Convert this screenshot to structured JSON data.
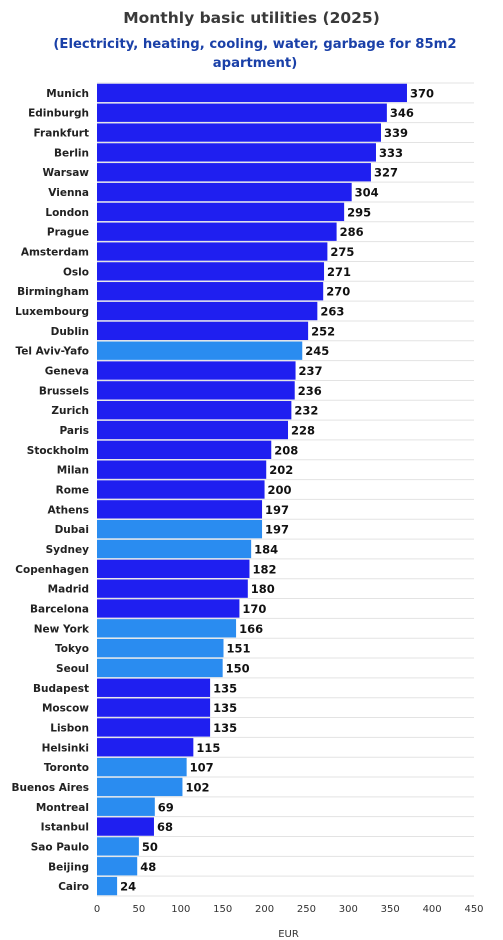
{
  "chart_data": {
    "type": "bar",
    "orientation": "horizontal",
    "title": "Monthly basic utilities (2025)",
    "subtitle": "(Electricity, heating, cooling, water, garbage for 85m2 apartment)",
    "xlabel": "EUR",
    "ylabel": "",
    "xlim": [
      0,
      450
    ],
    "xticks": [
      0,
      50,
      100,
      150,
      200,
      250,
      300,
      350,
      400,
      450
    ],
    "grid": true,
    "colors": {
      "europe": "#1f1ff0",
      "other": "#2a8cf0"
    },
    "categories": [
      "Munich",
      "Edinburgh",
      "Frankfurt",
      "Berlin",
      "Warsaw",
      "Vienna",
      "London",
      "Prague",
      "Amsterdam",
      "Oslo",
      "Birmingham",
      "Luxembourg",
      "Dublin",
      "Tel Aviv-Yafo",
      "Geneva",
      "Brussels",
      "Zurich",
      "Paris",
      "Stockholm",
      "Milan",
      "Rome",
      "Athens",
      "Dubai",
      "Sydney",
      "Copenhagen",
      "Madrid",
      "Barcelona",
      "New York",
      "Tokyo",
      "Seoul",
      "Budapest",
      "Moscow",
      "Lisbon",
      "Helsinki",
      "Toronto",
      "Buenos Aires",
      "Montreal",
      "Istanbul",
      "Sao Paulo",
      "Beijing",
      "Cairo"
    ],
    "values": [
      370,
      346,
      339,
      333,
      327,
      304,
      295,
      286,
      275,
      271,
      270,
      263,
      252,
      245,
      237,
      236,
      232,
      228,
      208,
      202,
      200,
      197,
      197,
      184,
      182,
      180,
      170,
      166,
      151,
      150,
      135,
      135,
      135,
      115,
      107,
      102,
      69,
      68,
      50,
      48,
      24
    ],
    "bar_groups": [
      "europe",
      "europe",
      "europe",
      "europe",
      "europe",
      "europe",
      "europe",
      "europe",
      "europe",
      "europe",
      "europe",
      "europe",
      "europe",
      "other",
      "europe",
      "europe",
      "europe",
      "europe",
      "europe",
      "europe",
      "europe",
      "europe",
      "other",
      "other",
      "europe",
      "europe",
      "europe",
      "other",
      "other",
      "other",
      "europe",
      "europe",
      "europe",
      "europe",
      "other",
      "other",
      "other",
      "europe",
      "other",
      "other",
      "other"
    ]
  }
}
